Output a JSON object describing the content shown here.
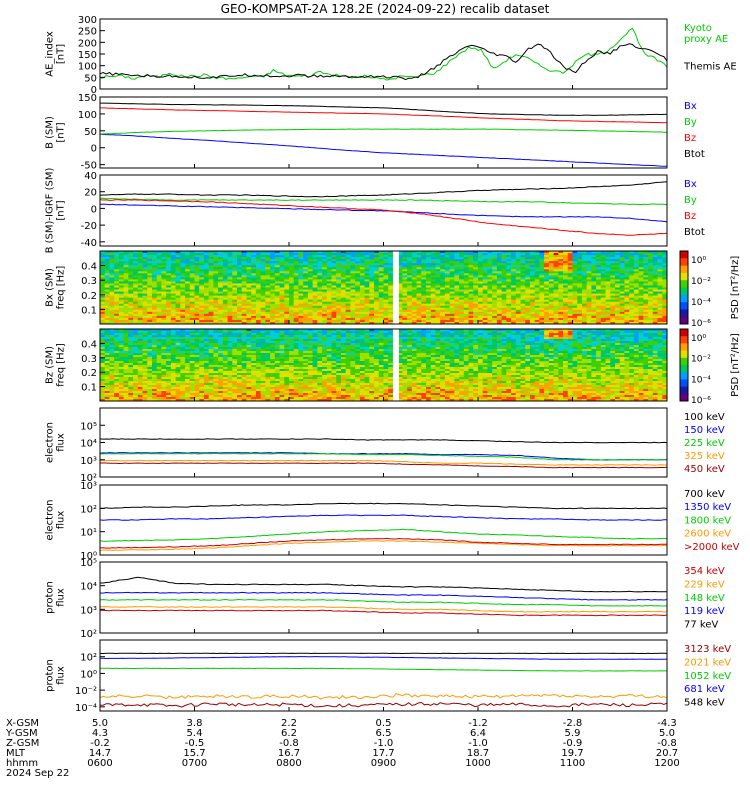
{
  "title": "GEO-KOMPSAT-2A 128.2E (2024-09-22) recalib dataset",
  "chart_data": [
    {
      "type": "line",
      "ylabel": "AE_index\n[nT]",
      "ylim": [
        0,
        300
      ],
      "yticks": [
        "0",
        "50",
        "100",
        "150",
        "200",
        "250",
        "300"
      ],
      "legend": [
        {
          "label": "Kyoto\nproxy AE",
          "color": "#00cc00"
        },
        {
          "label": "Themis AE",
          "color": "#000000"
        }
      ],
      "series": [
        {
          "name": "Kyoto proxy AE",
          "color": "#00cc00",
          "values": [
            50,
            55,
            55,
            45,
            60,
            50,
            70,
            55,
            55,
            60,
            50,
            45,
            45,
            55,
            50,
            80,
            60,
            55,
            55,
            75,
            60,
            55,
            50,
            55,
            45,
            40,
            55,
            50,
            60,
            70,
            110,
            150,
            180,
            165,
            85,
            120,
            150,
            130,
            100,
            80,
            70,
            110,
            150,
            145,
            170,
            215,
            260,
            150,
            130,
            95
          ]
        },
        {
          "name": "Themis AE",
          "color": "#000000",
          "values": [
            65,
            65,
            60,
            60,
            55,
            55,
            55,
            55,
            50,
            50,
            50,
            55,
            60,
            60,
            60,
            55,
            55,
            60,
            55,
            55,
            55,
            55,
            50,
            55,
            55,
            50,
            50,
            40,
            65,
            95,
            130,
            160,
            190,
            170,
            150,
            140,
            115,
            170,
            195,
            150,
            95,
            70,
            120,
            160,
            150,
            185,
            190,
            170,
            160,
            125
          ]
        }
      ]
    },
    {
      "type": "line",
      "ylabel": "B (SM)\n[nT]",
      "ylim": [
        -60,
        150
      ],
      "yticks": [
        "-50",
        "0",
        "50",
        "100",
        "150"
      ],
      "legend": [
        {
          "label": "Bx",
          "color": "#0000ff"
        },
        {
          "label": "By",
          "color": "#00cc00"
        },
        {
          "label": "Bz",
          "color": "#ff0000"
        },
        {
          "label": "Btot",
          "color": "#000000"
        }
      ],
      "series": [
        {
          "name": "Bx",
          "color": "#0000ff",
          "values": [
            40,
            35,
            28,
            22,
            15,
            8,
            0,
            -8,
            -15,
            -20,
            -25,
            -30,
            -35,
            -40,
            -45,
            -50,
            -55
          ]
        },
        {
          "name": "By",
          "color": "#00cc00",
          "values": [
            40,
            45,
            48,
            50,
            52,
            53,
            54,
            55,
            55,
            55,
            55,
            55,
            53,
            52,
            50,
            48,
            46
          ]
        },
        {
          "name": "Bz",
          "color": "#ff0000",
          "values": [
            118,
            115,
            112,
            110,
            108,
            106,
            104,
            102,
            100,
            96,
            92,
            87,
            84,
            80,
            78,
            76,
            74
          ]
        },
        {
          "name": "Btot",
          "color": "#000000",
          "values": [
            132,
            130,
            128,
            127,
            126,
            125,
            123,
            120,
            118,
            112,
            105,
            100,
            98,
            96,
            96,
            97,
            99
          ]
        }
      ]
    },
    {
      "type": "line",
      "ylabel": "B (SM)-IGRF (SM)\n[nT]",
      "ylim": [
        -45,
        40
      ],
      "yticks": [
        "-40",
        "-20",
        "0",
        "20",
        "40"
      ],
      "legend": [
        {
          "label": "Bx",
          "color": "#0000ff"
        },
        {
          "label": "By",
          "color": "#00cc00"
        },
        {
          "label": "Bz",
          "color": "#ff0000"
        },
        {
          "label": "Btot",
          "color": "#000000"
        }
      ],
      "series": [
        {
          "name": "Bx",
          "color": "#0000ff",
          "values": [
            5,
            4,
            3,
            2,
            1,
            0,
            -1,
            -2,
            -3,
            -5,
            -7,
            -9,
            -10,
            -10,
            -10,
            -12,
            -16
          ]
        },
        {
          "name": "By",
          "color": "#00cc00",
          "values": [
            12,
            11,
            10,
            10,
            10,
            10,
            10,
            10,
            10,
            10,
            9,
            8,
            8,
            7,
            6,
            5,
            5
          ]
        },
        {
          "name": "Bz",
          "color": "#ff0000",
          "values": [
            10,
            10,
            9,
            8,
            6,
            4,
            2,
            0,
            -2,
            -6,
            -12,
            -18,
            -22,
            -26,
            -30,
            -32,
            -30
          ]
        },
        {
          "name": "Btot",
          "color": "#000000",
          "values": [
            16,
            17,
            17,
            16,
            16,
            15,
            14,
            15,
            16,
            18,
            20,
            22,
            23,
            24,
            26,
            28,
            32
          ]
        }
      ]
    },
    {
      "type": "heatmap",
      "ylabel": "Bx (SM)\nfreq [Hz]",
      "yticks": [
        "0.1",
        "0.2",
        "0.3",
        "0.4"
      ],
      "ylim": [
        0,
        0.5
      ],
      "colorbar": {
        "label": "PSD [nT²/Hz]",
        "ticks": [
          "10⁰",
          "10⁻²",
          "10⁻⁴",
          "10⁻⁶"
        ]
      },
      "gap_time": "0900"
    },
    {
      "type": "heatmap",
      "ylabel": "Bz (SM)\nfreq [Hz]",
      "yticks": [
        "0.1",
        "0.2",
        "0.3",
        "0.4"
      ],
      "ylim": [
        0,
        0.5
      ],
      "colorbar": {
        "label": "PSD [nT²/Hz]",
        "ticks": [
          "10⁰",
          "10⁻²",
          "10⁻⁴",
          "10⁻⁶"
        ]
      },
      "gap_time": "0900"
    },
    {
      "type": "line",
      "scale": "log",
      "ylabel": "electron\nflux",
      "ylim_exp": [
        2,
        6
      ],
      "ytick_exps": [
        2,
        3,
        4,
        5
      ],
      "legend": [
        {
          "label": "100 keV",
          "color": "#000000"
        },
        {
          "label": "150 keV",
          "color": "#0000ff"
        },
        {
          "label": "225 keV",
          "color": "#00cc00"
        },
        {
          "label": "325 keV",
          "color": "#ff9900"
        },
        {
          "label": "450 keV",
          "color": "#990000"
        }
      ],
      "series": [
        {
          "name": "100 keV",
          "color": "#000000",
          "values": [
            4.2,
            4.2,
            4.2,
            4.2,
            4.2,
            4.2,
            4.2,
            4.15,
            4.15,
            4.15,
            4.1,
            4.05,
            4.0,
            4.0,
            4.0,
            4.0
          ]
        },
        {
          "name": "150 keV",
          "color": "#0000ff",
          "values": [
            3.4,
            3.4,
            3.4,
            3.4,
            3.4,
            3.4,
            3.35,
            3.35,
            3.35,
            3.3,
            3.3,
            3.25,
            3.1,
            3.0,
            3.0,
            3.0
          ]
        },
        {
          "name": "225 keV",
          "color": "#00cc00",
          "values": [
            3.35,
            3.35,
            3.35,
            3.35,
            3.35,
            3.35,
            3.35,
            3.3,
            3.3,
            3.25,
            3.2,
            3.15,
            3.0,
            3.0,
            3.0,
            3.0
          ]
        },
        {
          "name": "325 keV",
          "color": "#ff9900",
          "values": [
            2.95,
            2.95,
            2.95,
            2.95,
            2.95,
            2.95,
            2.95,
            2.95,
            2.9,
            2.8,
            2.8,
            2.75,
            2.7,
            2.7,
            2.7,
            2.7
          ]
        },
        {
          "name": "450 keV",
          "color": "#990000",
          "values": [
            2.8,
            2.8,
            2.8,
            2.8,
            2.8,
            2.8,
            2.8,
            2.8,
            2.75,
            2.7,
            2.65,
            2.6,
            2.55,
            2.55,
            2.55,
            2.55
          ]
        }
      ]
    },
    {
      "type": "line",
      "scale": "log",
      "ylabel": "electron\nflux",
      "ylim_exp": [
        0,
        3
      ],
      "ytick_exps": [
        0,
        1,
        2,
        3
      ],
      "legend": [
        {
          "label": "700 keV",
          "color": "#000000"
        },
        {
          "label": "1350 keV",
          "color": "#0000ff"
        },
        {
          "label": "1800 keV",
          "color": "#00cc00"
        },
        {
          "label": "2600 keV",
          "color": "#ff9900"
        },
        {
          "label": ">2000 keV",
          "color": "#cc0000"
        }
      ],
      "series": [
        {
          "name": "700 keV",
          "color": "#000000",
          "values": [
            2.0,
            2.05,
            2.05,
            2.1,
            2.15,
            2.15,
            2.2,
            2.2,
            2.2,
            2.15,
            2.1,
            2.05,
            2.0,
            2.0,
            2.0,
            2.0
          ]
        },
        {
          "name": "1350 keV",
          "color": "#0000ff",
          "values": [
            1.5,
            1.5,
            1.55,
            1.55,
            1.6,
            1.65,
            1.7,
            1.7,
            1.7,
            1.65,
            1.6,
            1.55,
            1.55,
            1.5,
            1.5,
            1.5
          ]
        },
        {
          "name": "1800 keV",
          "color": "#00cc00",
          "values": [
            0.6,
            0.62,
            0.65,
            0.7,
            0.8,
            0.9,
            1.0,
            1.05,
            1.1,
            1.0,
            0.9,
            0.85,
            0.8,
            0.75,
            0.7,
            0.7
          ]
        },
        {
          "name": "2600 keV",
          "color": "#ff9900",
          "values": [
            0.2,
            0.22,
            0.25,
            0.3,
            0.4,
            0.5,
            0.55,
            0.6,
            0.6,
            0.55,
            0.5,
            0.45,
            0.4,
            0.4,
            0.4,
            0.4
          ]
        },
        {
          "name": ">2000 keV",
          "color": "#cc0000",
          "values": [
            0.3,
            0.32,
            0.35,
            0.4,
            0.5,
            0.6,
            0.65,
            0.7,
            0.7,
            0.65,
            0.55,
            0.5,
            0.45,
            0.45,
            0.45,
            0.45
          ]
        }
      ]
    },
    {
      "type": "line",
      "scale": "log",
      "ylabel": "proton\nflux",
      "ylim_exp": [
        2,
        5
      ],
      "ytick_exps": [
        2,
        3,
        4,
        5
      ],
      "legend": [
        {
          "label": "354 keV",
          "color": "#cc0000"
        },
        {
          "label": "229 keV",
          "color": "#ff9900"
        },
        {
          "label": "148 keV",
          "color": "#00cc00"
        },
        {
          "label": "119 keV",
          "color": "#0000ff"
        },
        {
          "label": "77 keV",
          "color": "#000000"
        }
      ],
      "series": [
        {
          "name": "77 keV",
          "color": "#000000",
          "values": [
            4.1,
            4.35,
            4.1,
            4.05,
            4.05,
            4.05,
            4.05,
            4.0,
            3.95,
            3.95,
            3.9,
            3.85,
            3.8,
            3.75,
            3.75,
            3.75
          ]
        },
        {
          "name": "119 keV",
          "color": "#0000ff",
          "values": [
            3.7,
            3.7,
            3.7,
            3.7,
            3.7,
            3.7,
            3.7,
            3.65,
            3.6,
            3.6,
            3.55,
            3.5,
            3.45,
            3.4,
            3.4,
            3.4
          ]
        },
        {
          "name": "148 keV",
          "color": "#00cc00",
          "values": [
            3.4,
            3.4,
            3.4,
            3.4,
            3.4,
            3.4,
            3.4,
            3.35,
            3.3,
            3.3,
            3.25,
            3.2,
            3.2,
            3.15,
            3.15,
            3.15
          ]
        },
        {
          "name": "229 keV",
          "color": "#ff9900",
          "values": [
            3.1,
            3.1,
            3.1,
            3.1,
            3.1,
            3.1,
            3.1,
            3.05,
            3.0,
            3.0,
            2.95,
            2.9,
            2.9,
            2.9,
            2.9,
            2.9
          ]
        },
        {
          "name": "354 keV",
          "color": "#cc0000",
          "values": [
            2.95,
            2.95,
            2.95,
            2.95,
            2.95,
            2.95,
            2.95,
            2.9,
            2.85,
            2.85,
            2.8,
            2.75,
            2.75,
            2.75,
            2.75,
            2.75
          ]
        }
      ]
    },
    {
      "type": "line",
      "scale": "log",
      "ylabel": "proton\nflux",
      "ylim_exp": [
        -4.5,
        4
      ],
      "ytick_exps": [
        -4,
        -2,
        0,
        2
      ],
      "legend": [
        {
          "label": "3123 keV",
          "color": "#990000"
        },
        {
          "label": "2021 keV",
          "color": "#ff9900"
        },
        {
          "label": "1052 keV",
          "color": "#00cc00"
        },
        {
          "label": "681 keV",
          "color": "#0000ff"
        },
        {
          "label": "548 keV",
          "color": "#000000"
        }
      ],
      "series": [
        {
          "name": "548 keV",
          "color": "#000000",
          "values": [
            2.4,
            2.4,
            2.4,
            2.4,
            2.4,
            2.4,
            2.4,
            2.4,
            2.4,
            2.4,
            2.4,
            2.4,
            2.4,
            2.4,
            2.4,
            2.4
          ]
        },
        {
          "name": "681 keV",
          "color": "#0000ff",
          "values": [
            1.8,
            1.8,
            1.85,
            1.9,
            1.95,
            2.0,
            2.0,
            1.95,
            1.9,
            1.85,
            1.8,
            1.75,
            1.7,
            1.7,
            1.7,
            1.7
          ]
        },
        {
          "name": "1052 keV",
          "color": "#00cc00",
          "values": [
            0.6,
            0.6,
            0.6,
            0.6,
            0.6,
            0.6,
            0.6,
            0.55,
            0.5,
            0.45,
            0.4,
            0.35,
            0.3,
            0.3,
            0.3,
            0.3
          ]
        },
        {
          "name": "2021 keV",
          "color": "#ff9900",
          "values": [
            -2.8,
            -2.7,
            -2.9,
            -2.7,
            -2.8,
            -2.7,
            -2.9,
            -2.8,
            -2.6,
            -2.7,
            -2.8,
            -2.7,
            -2.6,
            -2.8,
            -2.7,
            -2.8
          ]
        },
        {
          "name": "3123 keV",
          "color": "#990000",
          "values": [
            -3.8,
            -3.7,
            -3.9,
            -3.6,
            -3.8,
            -3.7,
            -3.9,
            -3.8,
            -3.7,
            -3.6,
            -3.8,
            -3.7,
            -3.9,
            -3.7,
            -3.8,
            -3.7
          ]
        }
      ]
    }
  ],
  "x_axis": {
    "row_labels": [
      "X-GSM",
      "Y-GSM",
      "Z-GSM",
      "MLT",
      "hhmm"
    ],
    "columns": [
      [
        "5.0",
        "4.3",
        "-0.2",
        "14.7",
        "0600"
      ],
      [
        "3.8",
        "5.4",
        "-0.5",
        "15.7",
        "0700"
      ],
      [
        "2.2",
        "6.2",
        "-0.8",
        "16.7",
        "0800"
      ],
      [
        "0.5",
        "6.5",
        "-1.0",
        "17.7",
        "0900"
      ],
      [
        "-1.2",
        "6.4",
        "-1.0",
        "18.7",
        "1000"
      ],
      [
        "-2.8",
        "5.9",
        "-0.9",
        "19.7",
        "1100"
      ],
      [
        "-4.3",
        "5.0",
        "-0.8",
        "20.7",
        "1200"
      ]
    ],
    "date": "2024 Sep 22"
  }
}
